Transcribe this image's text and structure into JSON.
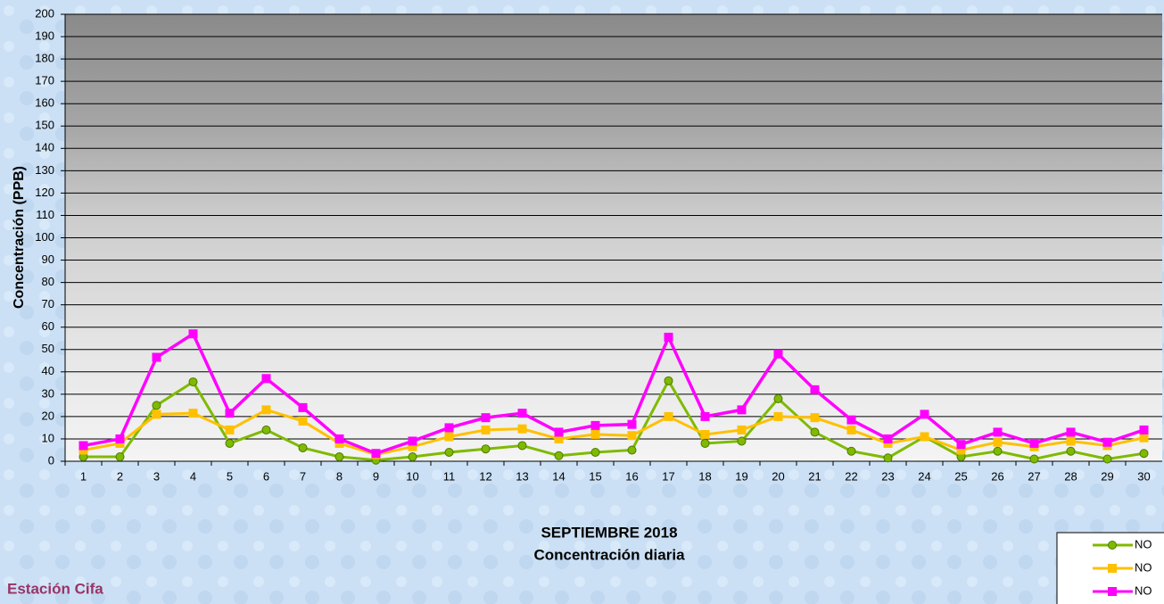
{
  "chart_data": {
    "type": "line",
    "title": "SEPTIEMBRE 2018",
    "subtitle": "Concentración diaria",
    "y_label": "Concentración  (PPB)",
    "footer": "Estación Cifa",
    "categories": [
      "1",
      "2",
      "3",
      "4",
      "5",
      "6",
      "7",
      "8",
      "9",
      "10",
      "11",
      "12",
      "13",
      "14",
      "15",
      "16",
      "17",
      "18",
      "19",
      "20",
      "21",
      "22",
      "23",
      "24",
      "25",
      "26",
      "27",
      "28",
      "29",
      "30"
    ],
    "series": [
      {
        "name": "NO",
        "color": "#7fba00",
        "marker": "circle",
        "values": [
          2,
          2,
          25,
          35.5,
          8,
          14,
          6,
          2,
          0.5,
          2,
          4,
          5.5,
          7,
          2.5,
          4,
          5,
          36,
          8,
          9,
          28,
          13,
          4.5,
          1.5,
          11,
          2,
          4.5,
          1,
          4.5,
          1,
          3.5
        ]
      },
      {
        "name": "NO",
        "color": "#ffc000",
        "marker": "square",
        "values": [
          5,
          8,
          21,
          21.5,
          14,
          23,
          18,
          8,
          3,
          6.5,
          11,
          14,
          14.5,
          10,
          12,
          11.5,
          20,
          12,
          14,
          20,
          19.5,
          14,
          8,
          11,
          5,
          8.5,
          6.5,
          9,
          7,
          10.5
        ]
      },
      {
        "name": "NO",
        "color": "#ff00ff",
        "marker": "square",
        "values": [
          7,
          10,
          46.5,
          57,
          21.5,
          37,
          24,
          10,
          3.5,
          9,
          15,
          19.5,
          21.5,
          13,
          16,
          16.5,
          55.5,
          20,
          23,
          48,
          32,
          18.5,
          10,
          21,
          7.5,
          13,
          8,
          13,
          8.5,
          14
        ]
      }
    ],
    "ylim": [
      0,
      200
    ],
    "yticks": [
      0,
      10,
      20,
      30,
      40,
      50,
      60,
      70,
      80,
      90,
      100,
      110,
      120,
      130,
      140,
      150,
      160,
      170,
      180,
      190,
      200
    ],
    "grid": true
  }
}
